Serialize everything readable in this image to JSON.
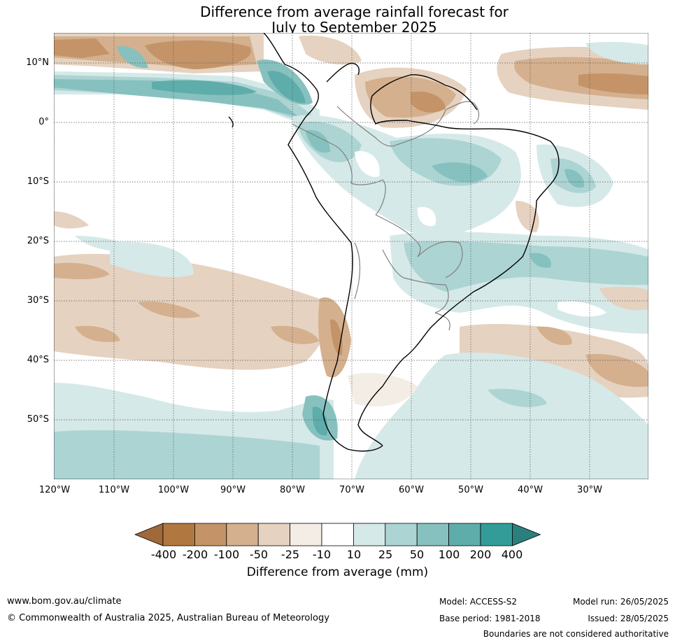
{
  "title": {
    "line1": "Difference from average rainfall forecast for",
    "line2": "July to September 2025"
  },
  "map": {
    "region": "South America",
    "lat_labels": [
      "10°N",
      "0°",
      "10°S",
      "20°S",
      "30°S",
      "40°S",
      "50°S"
    ],
    "lon_labels": [
      "120°W",
      "110°W",
      "100°W",
      "90°W",
      "80°W",
      "70°W",
      "60°W",
      "50°W",
      "40°W",
      "30°W"
    ],
    "colors": {
      "ocean": "#ffffff",
      "coast": "#000000",
      "borders": "#808080",
      "grid": "#555555"
    }
  },
  "legend": {
    "title": "Difference from average (mm)",
    "ticks": [
      "-400",
      "-200",
      "-100",
      "-50",
      "-25",
      "-10",
      "10",
      "25",
      "50",
      "100",
      "200",
      "400"
    ],
    "colors": [
      "#a0693a",
      "#b07840",
      "#c49468",
      "#d4b08e",
      "#e6d2c0",
      "#f3ede6",
      "#ffffff",
      "#d5e9e8",
      "#acd4d3",
      "#86c1bf",
      "#5eadab",
      "#339c98",
      "#2b7f7c"
    ]
  },
  "footer": {
    "website": "www.bom.gov.au/climate",
    "copyright": "© Commonwealth of Australia 2025, Australian Bureau of Meteorology",
    "model": "Model: ACCESS-S2",
    "base_period": "Base period: 1981-2018",
    "model_run": "Model run: 26/05/2025",
    "issued": "Issued: 28/05/2025",
    "disclaimer": "Boundaries are not considered authoritative"
  }
}
